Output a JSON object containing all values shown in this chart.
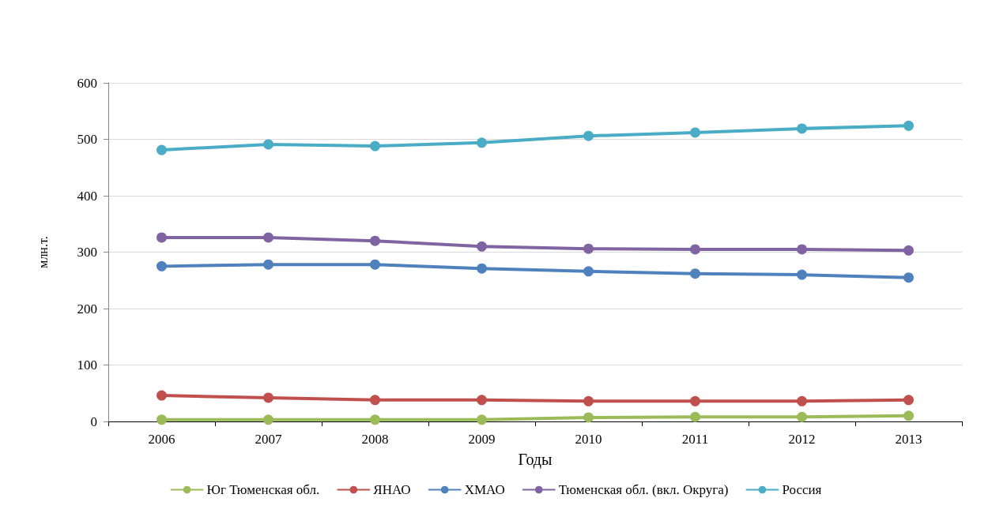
{
  "chart_data": {
    "type": "line",
    "xlabel": "Годы",
    "ylabel": "млн.т.",
    "categories": [
      "2006",
      "2007",
      "2008",
      "2009",
      "2010",
      "2011",
      "2012",
      "2013"
    ],
    "series": [
      {
        "name": "Юг Тюменская обл.",
        "color": "#9bbb59",
        "values": [
          3,
          3,
          3,
          3,
          7,
          8,
          8,
          10
        ]
      },
      {
        "name": "ЯНАО",
        "color": "#c0504d",
        "values": [
          46,
          42,
          38,
          38,
          36,
          36,
          36,
          38
        ]
      },
      {
        "name": "ХМАО",
        "color": "#4f81bd",
        "values": [
          275,
          278,
          278,
          271,
          266,
          262,
          260,
          255
        ]
      },
      {
        "name": "Тюменская обл. (вкл. Округа)",
        "color": "#8064a2",
        "values": [
          326,
          326,
          320,
          310,
          306,
          305,
          305,
          303
        ]
      },
      {
        "name": "Россия",
        "color": "#4bacc6",
        "values": [
          481,
          491,
          488,
          494,
          506,
          512,
          519,
          524
        ]
      }
    ],
    "ylim": [
      0,
      600
    ],
    "yticks": [
      0,
      100,
      200,
      300,
      400,
      500,
      600
    ],
    "grid": "y",
    "legend": "bottom",
    "marker": "circle",
    "line_style": "solid"
  }
}
